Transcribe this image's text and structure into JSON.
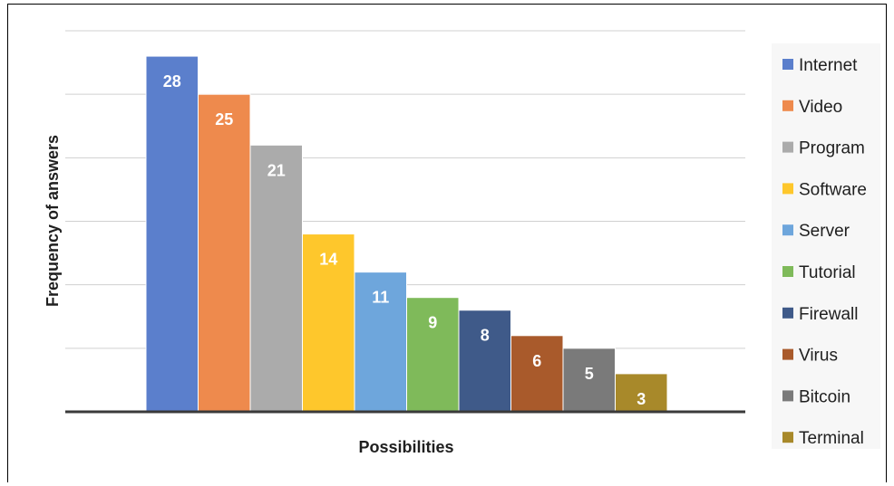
{
  "chart_data": {
    "type": "bar",
    "title": "",
    "xlabel": "Possibilities",
    "ylabel": "Frequency of answers",
    "ylim": [
      0,
      30
    ],
    "grid": true,
    "legend_position": "right",
    "categories": [
      "Internet",
      "Video",
      "Program",
      "Software",
      "Server",
      "Tutorial",
      "Firewall",
      "Virus",
      "Bitcoin",
      "Terminal"
    ],
    "values": [
      28,
      25,
      21,
      14,
      11,
      9,
      8,
      6,
      5,
      3
    ],
    "data_labels": [
      "28",
      "25",
      "21",
      "14",
      "11",
      "9",
      "8",
      "6",
      "5",
      "3"
    ],
    "colors": [
      "#5b7fcc",
      "#ee8a4d",
      "#ababab",
      "#fec72c",
      "#6ea6dc",
      "#7fba5a",
      "#3f5a89",
      "#a95a2b",
      "#7a7a7a",
      "#a8892a"
    ]
  }
}
